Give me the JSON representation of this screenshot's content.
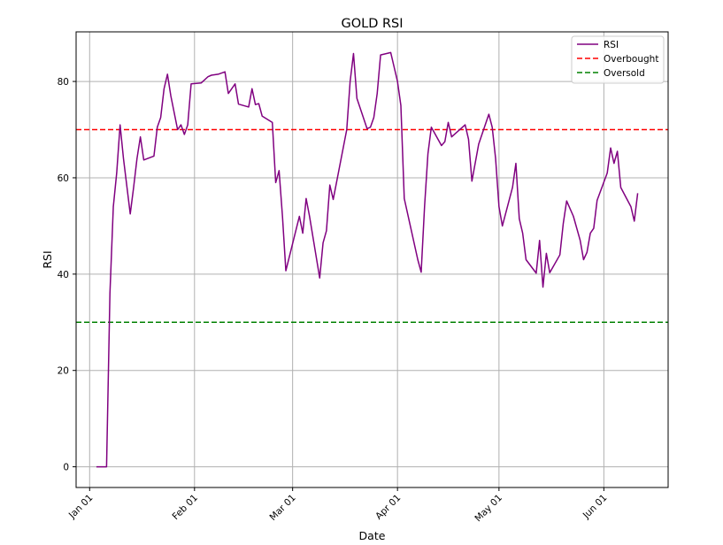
{
  "chart_data": {
    "type": "line",
    "title": "GOLD RSI",
    "xlabel": "Date",
    "ylabel": "RSI",
    "x_range": [
      "2023-12-28",
      "2024-06-20"
    ],
    "ylim": [
      -4.3,
      90.3
    ],
    "grid": true,
    "legend_position": "top-right",
    "x_ticks": [
      {
        "date": "2024-01-01",
        "label": "Jan 01"
      },
      {
        "date": "2024-02-01",
        "label": "Feb 01"
      },
      {
        "date": "2024-03-01",
        "label": "Mar 01"
      },
      {
        "date": "2024-04-01",
        "label": "Apr 01"
      },
      {
        "date": "2024-05-01",
        "label": "May 01"
      },
      {
        "date": "2024-06-01",
        "label": "Jun 01"
      }
    ],
    "y_ticks": [
      0,
      20,
      40,
      60,
      80
    ],
    "series": [
      {
        "name": "RSI",
        "color": "#800080",
        "style": "solid",
        "points": [
          [
            "2024-01-03",
            0
          ],
          [
            "2024-01-06",
            0
          ],
          [
            "2024-01-07",
            36
          ],
          [
            "2024-01-08",
            54
          ],
          [
            "2024-01-09",
            61
          ],
          [
            "2024-01-10",
            71
          ],
          [
            "2024-01-11",
            64
          ],
          [
            "2024-01-13",
            52.5
          ],
          [
            "2024-01-14",
            58
          ],
          [
            "2024-01-15",
            64
          ],
          [
            "2024-01-16",
            68.5
          ],
          [
            "2024-01-17",
            63.7
          ],
          [
            "2024-01-20",
            64.5
          ],
          [
            "2024-01-21",
            70.5
          ],
          [
            "2024-01-22",
            72.5
          ],
          [
            "2024-01-23",
            78.5
          ],
          [
            "2024-01-24",
            81.5
          ],
          [
            "2024-01-25",
            77
          ],
          [
            "2024-01-27",
            70
          ],
          [
            "2024-01-28",
            71
          ],
          [
            "2024-01-29",
            69
          ],
          [
            "2024-01-30",
            71
          ],
          [
            "2024-01-31",
            79.5
          ],
          [
            "2024-02-03",
            79.7
          ],
          [
            "2024-02-05",
            81
          ],
          [
            "2024-02-06",
            81.3
          ],
          [
            "2024-02-08",
            81.5
          ],
          [
            "2024-02-10",
            82
          ],
          [
            "2024-02-11",
            77.5
          ],
          [
            "2024-02-13",
            79.5
          ],
          [
            "2024-02-14",
            75.3
          ],
          [
            "2024-02-17",
            74.7
          ],
          [
            "2024-02-18",
            78.5
          ],
          [
            "2024-02-19",
            75.2
          ],
          [
            "2024-02-20",
            75.4
          ],
          [
            "2024-02-21",
            72.8
          ],
          [
            "2024-02-24",
            71.5
          ],
          [
            "2024-02-25",
            59
          ],
          [
            "2024-02-26",
            61.5
          ],
          [
            "2024-02-27",
            52
          ],
          [
            "2024-02-28",
            40.7
          ],
          [
            "2024-03-03",
            52
          ],
          [
            "2024-03-04",
            48.5
          ],
          [
            "2024-03-05",
            55.7
          ],
          [
            "2024-03-06",
            52
          ],
          [
            "2024-03-09",
            39.2
          ],
          [
            "2024-03-10",
            46.5
          ],
          [
            "2024-03-11",
            49
          ],
          [
            "2024-03-12",
            58.5
          ],
          [
            "2024-03-13",
            55.5
          ],
          [
            "2024-03-17",
            70
          ],
          [
            "2024-03-18",
            80
          ],
          [
            "2024-03-19",
            85.8
          ],
          [
            "2024-03-20",
            76.5
          ],
          [
            "2024-03-23",
            70.2
          ],
          [
            "2024-03-24",
            70.5
          ],
          [
            "2024-03-25",
            72.5
          ],
          [
            "2024-03-26",
            77.5
          ],
          [
            "2024-03-27",
            85.5
          ],
          [
            "2024-03-30",
            86
          ],
          [
            "2024-03-31",
            83
          ],
          [
            "2024-04-01",
            80
          ],
          [
            "2024-04-02",
            75
          ],
          [
            "2024-04-03",
            55.7
          ],
          [
            "2024-04-07",
            43
          ],
          [
            "2024-04-08",
            40.4
          ],
          [
            "2024-04-09",
            54
          ],
          [
            "2024-04-10",
            65
          ],
          [
            "2024-04-11",
            70.5
          ],
          [
            "2024-04-14",
            66.7
          ],
          [
            "2024-04-15",
            67.5
          ],
          [
            "2024-04-16",
            71.5
          ],
          [
            "2024-04-17",
            68.5
          ],
          [
            "2024-04-21",
            71
          ],
          [
            "2024-04-22",
            68
          ],
          [
            "2024-04-23",
            59.3
          ],
          [
            "2024-04-25",
            67
          ],
          [
            "2024-04-28",
            73.2
          ],
          [
            "2024-04-29",
            70.5
          ],
          [
            "2024-04-30",
            64
          ],
          [
            "2024-05-01",
            54
          ],
          [
            "2024-05-02",
            50
          ],
          [
            "2024-05-05",
            58
          ],
          [
            "2024-05-06",
            63
          ],
          [
            "2024-05-07",
            51.5
          ],
          [
            "2024-05-08",
            48.5
          ],
          [
            "2024-05-09",
            43
          ],
          [
            "2024-05-12",
            40.2
          ],
          [
            "2024-05-13",
            47
          ],
          [
            "2024-05-14",
            37.3
          ],
          [
            "2024-05-15",
            44.3
          ],
          [
            "2024-05-16",
            40.3
          ],
          [
            "2024-05-19",
            44
          ],
          [
            "2024-05-20",
            50.5
          ],
          [
            "2024-05-21",
            55.2
          ],
          [
            "2024-05-23",
            52
          ],
          [
            "2024-05-25",
            47
          ],
          [
            "2024-05-26",
            43
          ],
          [
            "2024-05-27",
            44.5
          ],
          [
            "2024-05-28",
            48.5
          ],
          [
            "2024-05-29",
            49.5
          ],
          [
            "2024-05-30",
            55.3
          ],
          [
            "2024-06-02",
            61
          ],
          [
            "2024-06-03",
            66.2
          ],
          [
            "2024-06-04",
            63
          ],
          [
            "2024-06-05",
            65.5
          ],
          [
            "2024-06-06",
            58
          ],
          [
            "2024-06-09",
            54
          ],
          [
            "2024-06-10",
            51
          ],
          [
            "2024-06-11",
            56.8
          ]
        ]
      },
      {
        "name": "Overbought",
        "color": "#ff0000",
        "style": "dashed",
        "y": 70
      },
      {
        "name": "Oversold",
        "color": "#008000",
        "style": "dashed",
        "y": 30
      }
    ]
  }
}
